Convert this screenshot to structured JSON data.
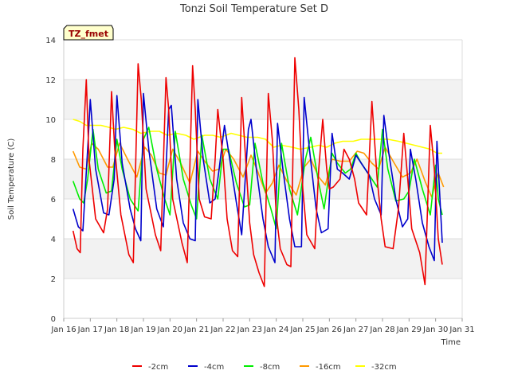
{
  "chart_data": {
    "type": "line",
    "title": "Tonzi Soil Temperature Set D",
    "xlabel": "Time",
    "ylabel": "Soil Temperature (C)",
    "ylim": [
      0,
      14
    ],
    "xlim": [
      16,
      31
    ],
    "yticks": [
      "0",
      "2",
      "4",
      "6",
      "8",
      "10",
      "12",
      "14"
    ],
    "xticks": [
      "Jan 16",
      "Jan 17",
      "Jan 18",
      "Jan 19",
      "Jan 20",
      "Jan 21",
      "Jan 22",
      "Jan 23",
      "Jan 24",
      "Jan 25",
      "Jan 26",
      "Jan 27",
      "Jan 28",
      "Jan 29",
      "Jan 30",
      "Jan 31"
    ],
    "grid": true,
    "legend_position": "bottom",
    "annotation": "TZ_fmet",
    "series": [
      {
        "name": "-2cm",
        "color": "#ee0000",
        "x": [
          16.35,
          16.5,
          16.62,
          16.72,
          16.85,
          16.95,
          17.2,
          17.5,
          17.65,
          17.8,
          17.92,
          18.15,
          18.45,
          18.62,
          18.8,
          18.92,
          19.1,
          19.45,
          19.65,
          19.85,
          19.95,
          20.1,
          20.45,
          20.65,
          20.85,
          20.95,
          21.1,
          21.3,
          21.55,
          21.7,
          21.8,
          22.0,
          22.15,
          22.35,
          22.55,
          22.7,
          22.85,
          23.0,
          23.15,
          23.35,
          23.55,
          23.7,
          23.85,
          24.0,
          24.15,
          24.4,
          24.55,
          24.7,
          24.85,
          25.0,
          25.15,
          25.45,
          25.6,
          25.75,
          25.9,
          26.0,
          26.15,
          26.4,
          26.55,
          26.75,
          26.95,
          27.1,
          27.4,
          27.6,
          27.8,
          27.95,
          28.1,
          28.4,
          28.6,
          28.8,
          28.95,
          29.1,
          29.4,
          29.6,
          29.8,
          29.95,
          30.1,
          30.25
        ],
        "y": [
          4.4,
          3.5,
          3.3,
          8.5,
          12.0,
          8.0,
          5.0,
          4.3,
          5.5,
          11.4,
          8.5,
          5.2,
          3.2,
          2.8,
          12.8,
          11.0,
          6.5,
          4.2,
          3.4,
          12.1,
          10.5,
          6.0,
          3.8,
          2.8,
          12.7,
          10.5,
          6.0,
          5.1,
          5.0,
          8.0,
          10.5,
          8.0,
          5.0,
          3.4,
          3.1,
          11.1,
          8.0,
          4.8,
          3.2,
          2.3,
          1.6,
          11.3,
          9.0,
          5.2,
          3.5,
          2.7,
          2.6,
          13.1,
          10.5,
          6.5,
          4.2,
          3.5,
          7.5,
          10.0,
          7.5,
          6.5,
          6.6,
          7.0,
          8.5,
          8.0,
          7.0,
          5.8,
          5.2,
          10.9,
          7.0,
          5.0,
          3.6,
          3.5,
          5.5,
          9.3,
          7.0,
          4.5,
          3.3,
          1.7,
          9.7,
          7.5,
          4.0,
          2.7
        ]
      },
      {
        "name": "-4cm",
        "color": "#0000cc",
        "x": [
          16.35,
          16.55,
          16.72,
          16.92,
          17.0,
          17.2,
          17.5,
          17.7,
          17.9,
          18.0,
          18.2,
          18.5,
          18.7,
          18.9,
          19.0,
          19.2,
          19.5,
          19.75,
          19.95,
          20.05,
          20.25,
          20.5,
          20.75,
          20.95,
          21.05,
          21.25,
          21.5,
          21.7,
          21.85,
          22.05,
          22.25,
          22.5,
          22.7,
          22.95,
          23.05,
          23.25,
          23.5,
          23.7,
          23.95,
          24.05,
          24.25,
          24.5,
          24.7,
          24.95,
          25.05,
          25.25,
          25.5,
          25.7,
          25.95,
          26.1,
          26.3,
          26.5,
          26.75,
          27.0,
          27.2,
          27.5,
          27.7,
          27.95,
          28.05,
          28.25,
          28.5,
          28.75,
          28.95,
          29.05,
          29.25,
          29.5,
          29.75,
          29.95,
          30.05,
          30.25
        ],
        "y": [
          5.5,
          4.6,
          4.4,
          9.0,
          11.0,
          7.5,
          5.3,
          5.2,
          7.0,
          11.2,
          7.8,
          5.5,
          4.5,
          3.9,
          11.3,
          8.5,
          5.5,
          4.6,
          10.5,
          10.7,
          7.0,
          4.8,
          4.0,
          3.9,
          11.0,
          8.0,
          5.8,
          6.0,
          7.5,
          9.7,
          8.0,
          5.8,
          4.2,
          9.5,
          10.0,
          7.5,
          5.0,
          3.6,
          2.8,
          9.8,
          7.5,
          5.0,
          3.6,
          3.6,
          11.1,
          8.5,
          5.5,
          4.3,
          4.5,
          9.3,
          7.5,
          7.3,
          7.0,
          8.2,
          7.8,
          7.2,
          6.0,
          5.2,
          10.2,
          8.2,
          6.0,
          4.6,
          5.0,
          8.5,
          7.0,
          4.8,
          3.6,
          2.9,
          8.9,
          3.8
        ]
      },
      {
        "name": "-8cm",
        "color": "#00ee00",
        "x": [
          16.35,
          16.6,
          16.75,
          16.9,
          17.1,
          17.3,
          17.6,
          17.8,
          18.0,
          18.2,
          18.5,
          18.8,
          19.0,
          19.2,
          19.5,
          19.8,
          20.0,
          20.2,
          20.5,
          20.8,
          21.0,
          21.2,
          21.5,
          21.8,
          22.0,
          22.2,
          22.5,
          22.8,
          23.0,
          23.2,
          23.5,
          23.8,
          24.0,
          24.2,
          24.5,
          24.8,
          25.1,
          25.3,
          25.6,
          25.8,
          26.1,
          26.3,
          26.6,
          26.8,
          27.0,
          27.2,
          27.5,
          27.8,
          28.0,
          28.2,
          28.5,
          28.8,
          29.0,
          29.2,
          29.5,
          29.8,
          30.0,
          30.1,
          30.25
        ],
        "y": [
          6.9,
          6.0,
          5.8,
          7.0,
          9.5,
          7.5,
          6.3,
          6.4,
          9.0,
          7.5,
          6.0,
          5.4,
          9.0,
          9.6,
          7.5,
          6.0,
          5.2,
          9.4,
          7.0,
          5.7,
          5.0,
          9.2,
          7.0,
          6.0,
          8.5,
          8.5,
          6.8,
          5.6,
          5.7,
          8.8,
          6.8,
          5.5,
          4.5,
          8.8,
          6.5,
          5.2,
          8.0,
          9.1,
          6.8,
          5.5,
          8.3,
          7.8,
          7.3,
          7.5,
          8.3,
          7.8,
          7.2,
          6.6,
          9.5,
          7.5,
          5.9,
          6.0,
          6.4,
          8.0,
          6.5,
          5.2,
          7.7,
          6.0,
          5.2
        ]
      },
      {
        "name": "-16cm",
        "color": "#ff9900",
        "x": [
          16.35,
          16.6,
          16.85,
          17.05,
          17.3,
          17.65,
          17.85,
          18.1,
          18.4,
          18.75,
          19.05,
          19.3,
          19.6,
          19.85,
          20.1,
          20.4,
          20.75,
          21.05,
          21.3,
          21.6,
          21.85,
          22.1,
          22.4,
          22.75,
          23.05,
          23.3,
          23.6,
          23.85,
          24.1,
          24.4,
          24.75,
          25.05,
          25.3,
          25.6,
          25.85,
          26.1,
          26.4,
          26.75,
          27.05,
          27.3,
          27.6,
          27.85,
          28.1,
          28.4,
          28.75,
          29.05,
          29.3,
          29.6,
          29.85,
          30.1,
          30.3
        ],
        "y": [
          8.4,
          7.6,
          7.5,
          8.8,
          8.5,
          7.6,
          7.6,
          8.8,
          8.0,
          7.1,
          8.6,
          8.2,
          7.3,
          7.2,
          8.5,
          7.8,
          6.8,
          8.4,
          7.9,
          7.4,
          7.5,
          8.5,
          8.0,
          7.1,
          8.2,
          7.4,
          6.3,
          6.8,
          7.7,
          6.9,
          6.2,
          7.6,
          8.0,
          7.1,
          6.7,
          8.0,
          7.9,
          7.9,
          8.4,
          8.3,
          7.8,
          7.5,
          8.6,
          7.9,
          7.1,
          7.3,
          8.0,
          6.9,
          6.1,
          7.3,
          6.6
        ],
        "_note": "-"
      },
      {
        "name": "-32cm",
        "color": "#ffff00",
        "x": [
          16.35,
          16.6,
          16.85,
          17.1,
          17.4,
          17.7,
          17.95,
          18.25,
          18.6,
          18.9,
          19.3,
          19.6,
          19.9,
          20.25,
          20.6,
          20.9,
          21.3,
          21.6,
          21.9,
          22.3,
          22.6,
          22.9,
          23.3,
          23.6,
          23.9,
          24.2,
          24.6,
          24.9,
          25.3,
          25.6,
          25.9,
          26.2,
          26.5,
          26.9,
          27.2,
          27.6,
          27.9,
          28.2,
          28.6,
          28.9,
          29.2,
          29.5,
          29.8,
          30.05,
          30.25
        ],
        "y": [
          10.0,
          9.9,
          9.7,
          9.7,
          9.7,
          9.6,
          9.5,
          9.6,
          9.5,
          9.3,
          9.4,
          9.4,
          9.2,
          9.3,
          9.2,
          9.0,
          9.2,
          9.2,
          9.1,
          9.3,
          9.2,
          9.1,
          9.1,
          9.0,
          8.6,
          8.7,
          8.6,
          8.5,
          8.6,
          8.7,
          8.6,
          8.8,
          8.9,
          8.9,
          9.0,
          9.0,
          9.0,
          9.0,
          8.9,
          8.8,
          8.7,
          8.6,
          8.5,
          8.3,
          8.3
        ]
      }
    ]
  }
}
